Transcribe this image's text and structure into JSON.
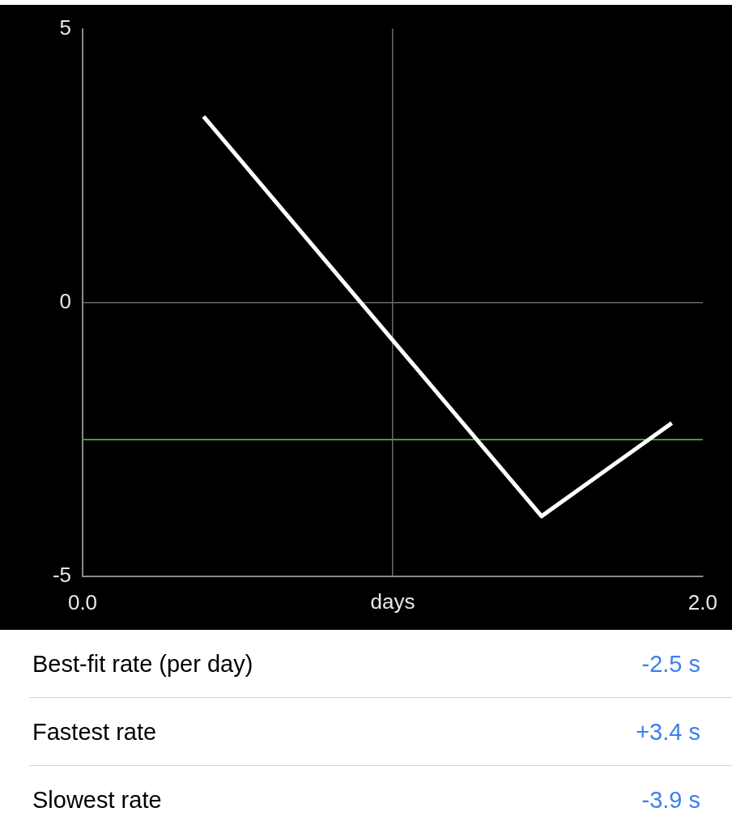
{
  "chart_data": {
    "type": "line",
    "xlabel": "days",
    "x": [
      0.39,
      1.48,
      1.9
    ],
    "series": [
      {
        "color": "#ffffff",
        "values": [
          3.4,
          -3.9,
          -2.2
        ]
      }
    ],
    "xlim": [
      0,
      2
    ],
    "xticks": [
      {
        "value": 0,
        "label": "0.0"
      },
      {
        "value": 1,
        "label": null
      },
      {
        "value": 2,
        "label": "2.0"
      }
    ],
    "ylim": [
      -5,
      5
    ],
    "yticks": [
      -5,
      0,
      5
    ],
    "grid": true,
    "marker": "none",
    "line_style": "solid",
    "ref_lines": [
      {
        "axis": "y",
        "value": -2.5,
        "color": "#4c9a2a"
      }
    ],
    "annotations": [
      "Best-fit rate (per day)",
      "-2.5 s",
      "Fastest rate",
      "+3.4 s",
      "Slowest rate",
      "-3.9 s"
    ]
  }
}
